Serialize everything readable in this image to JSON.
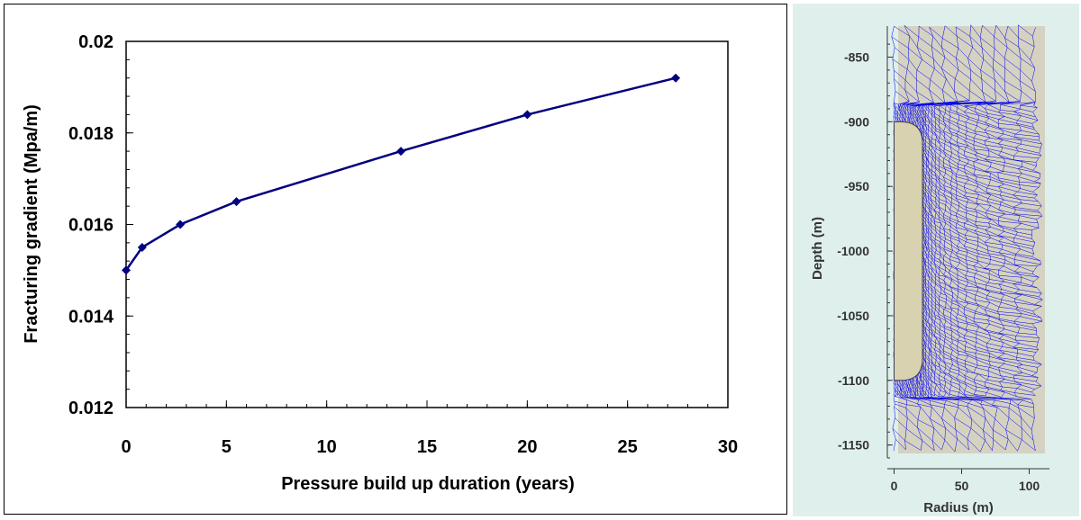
{
  "chart_data": [
    {
      "type": "line",
      "xlabel": "Pressure build up duration (years)",
      "ylabel": "Fracturing gradient (Mpa/m)",
      "xlim": [
        0,
        30
      ],
      "ylim": [
        0.012,
        0.02
      ],
      "x_ticks": [
        "0",
        "5",
        "10",
        "15",
        "20",
        "25",
        "30"
      ],
      "y_ticks": [
        "0.012",
        "0.014",
        "0.016",
        "0.018",
        "0.02"
      ],
      "x_tick_values": [
        0,
        5,
        10,
        15,
        20,
        25,
        30
      ],
      "y_tick_values": [
        0.012,
        0.014,
        0.016,
        0.018,
        0.02
      ],
      "series": [
        {
          "x": [
            0,
            0.8,
            2.7,
            5.5,
            13.7,
            20,
            27.4
          ],
          "y": [
            0.015,
            0.0155,
            0.016,
            0.0165,
            0.0176,
            0.0184,
            0.0192
          ],
          "color": "#000080"
        }
      ],
      "grid": false,
      "colors": {
        "line": "#000080",
        "frame": "#000000",
        "text": "#000000"
      }
    },
    {
      "type": "mesh",
      "xlabel": "Radius (m)",
      "ylabel": "Depth (m)",
      "xlim": [
        -5,
        115
      ],
      "ylim": [
        -1160,
        -826
      ],
      "x_ticks": [
        "0",
        "50",
        "100"
      ],
      "y_ticks": [
        "-850",
        "-900",
        "-950",
        "-1000",
        "-1050",
        "-1100",
        "-1150"
      ],
      "x_tick_values": [
        0,
        50,
        100
      ],
      "y_tick_values": [
        -850,
        -900,
        -950,
        -1000,
        -1050,
        -1100,
        -1150
      ],
      "cavern": {
        "top": -900,
        "bottom": -1100,
        "radius": 21
      },
      "colors": {
        "mesh": "#0000ee",
        "cavern_fill": "#d9d2b0",
        "domain_fill": "#d5d2c2",
        "background": "#dff0ec",
        "axis_text": "#333333"
      }
    }
  ]
}
